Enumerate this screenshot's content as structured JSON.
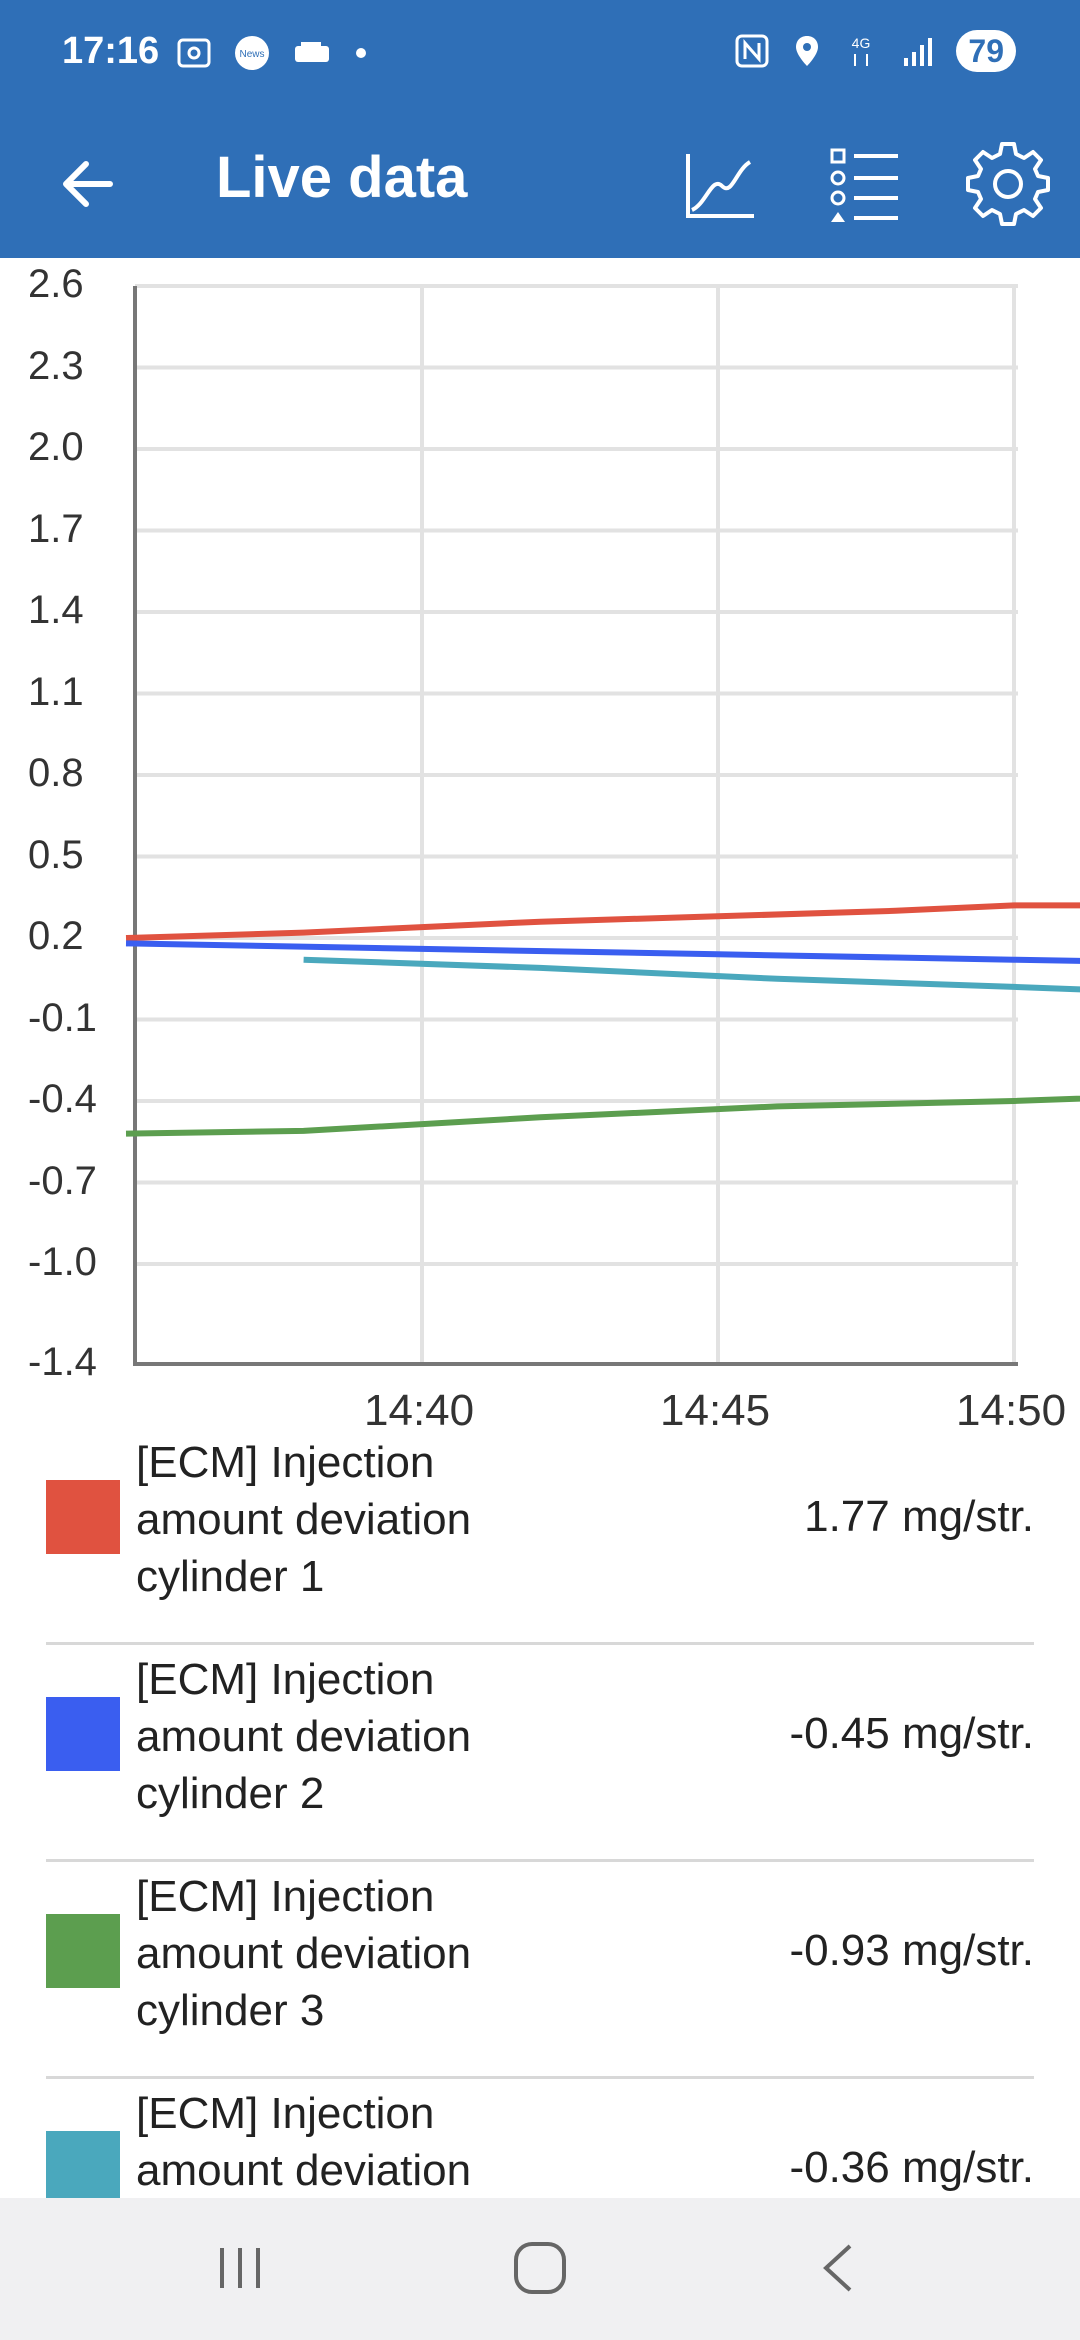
{
  "status_bar": {
    "time": "17:16",
    "left_icons": [
      "screenshot-icon",
      "news-icon",
      "car-icon",
      "dot-icon"
    ],
    "news_label": "News",
    "right_icons": [
      "nfc-icon",
      "location-icon",
      "4g-icon",
      "signal-icon"
    ],
    "network": "4G",
    "battery": "79"
  },
  "app_bar": {
    "title": "Live data",
    "icons": [
      "back-arrow-icon",
      "chart-icon",
      "list-icon",
      "gear-icon"
    ]
  },
  "chart_data": {
    "type": "line",
    "y_ticks": [
      "2.6",
      "2.3",
      "2.0",
      "1.7",
      "1.4",
      "1.1",
      "0.8",
      "0.5",
      "0.2",
      "-0.1",
      "-0.4",
      "-0.7",
      "-1.0",
      "-1.4"
    ],
    "x_ticks": [
      "14:40",
      "14:45",
      "14:50"
    ],
    "ylim": [
      -1.4,
      2.6
    ],
    "grid": true,
    "series": [
      {
        "name": "[ECM] Injection amount deviation cylinder 1",
        "color": "#e05240",
        "points": [
          [
            14.35,
            0.2
          ],
          [
            14.38,
            0.22
          ],
          [
            14.4,
            0.24
          ],
          [
            14.42,
            0.26
          ],
          [
            14.45,
            0.28
          ],
          [
            14.48,
            0.3
          ],
          [
            14.5,
            0.32
          ],
          [
            14.55,
            0.32
          ],
          [
            14.6,
            0.32
          ],
          [
            14.65,
            0.32
          ],
          [
            14.7,
            0.32
          ],
          [
            14.75,
            0.32
          ],
          [
            14.8,
            0.32
          ],
          [
            14.85,
            0.32
          ],
          [
            14.9,
            0.32
          ],
          [
            14.93,
            0.32
          ],
          [
            14.96,
            0.32
          ],
          [
            14.99,
            0.34
          ],
          [
            15.02,
            0.4
          ],
          [
            15.06,
            0.55
          ],
          [
            15.1,
            0.8
          ],
          [
            15.15,
            1.1
          ],
          [
            15.2,
            1.4
          ],
          [
            15.25,
            1.7
          ],
          [
            15.3,
            2.0
          ],
          [
            15.35,
            2.3
          ],
          [
            15.4,
            2.5
          ],
          [
            15.44,
            2.6
          ],
          [
            15.47,
            1.92
          ],
          [
            15.5,
            1.92
          ],
          [
            15.55,
            1.92
          ],
          [
            15.6,
            1.88
          ],
          [
            15.65,
            1.85
          ],
          [
            15.7,
            1.81
          ],
          [
            15.75,
            1.77
          ]
        ]
      },
      {
        "name": "[ECM] Injection amount deviation cylinder 2",
        "color": "#3a5ef0",
        "points": [
          [
            14.35,
            0.18
          ],
          [
            14.4,
            0.16
          ],
          [
            14.45,
            0.14
          ],
          [
            14.5,
            0.12
          ],
          [
            14.55,
            0.1
          ],
          [
            14.6,
            0.1
          ],
          [
            14.65,
            0.1
          ],
          [
            14.7,
            0.1
          ],
          [
            14.75,
            0.1
          ],
          [
            14.8,
            0.1
          ],
          [
            14.85,
            0.1
          ],
          [
            14.9,
            0.1
          ],
          [
            14.95,
            0.1
          ],
          [
            15.0,
            0.09
          ],
          [
            15.03,
            0.06
          ],
          [
            15.07,
            0.0
          ],
          [
            15.12,
            -0.08
          ],
          [
            15.18,
            -0.18
          ],
          [
            15.25,
            -0.3
          ],
          [
            15.32,
            -0.42
          ],
          [
            15.38,
            -0.52
          ],
          [
            15.42,
            -0.58
          ],
          [
            15.46,
            -0.6
          ],
          [
            15.49,
            -0.6
          ],
          [
            15.52,
            -0.5
          ],
          [
            15.55,
            -0.34
          ],
          [
            15.58,
            -0.33
          ],
          [
            15.62,
            -0.33
          ],
          [
            15.66,
            -0.35
          ],
          [
            15.7,
            -0.38
          ],
          [
            15.75,
            -0.41
          ],
          [
            15.8,
            -0.43
          ],
          [
            15.82,
            -0.45
          ]
        ]
      },
      {
        "name": "[ECM] Injection amount deviation cylinder 3",
        "color": "#5c9e4f",
        "points": [
          [
            14.35,
            -0.52
          ],
          [
            14.38,
            -0.51
          ],
          [
            14.42,
            -0.46
          ],
          [
            14.46,
            -0.42
          ],
          [
            14.5,
            -0.4
          ],
          [
            14.55,
            -0.36
          ],
          [
            14.6,
            -0.33
          ],
          [
            14.65,
            -0.33
          ],
          [
            14.7,
            -0.33
          ],
          [
            14.75,
            -0.33
          ],
          [
            14.8,
            -0.33
          ],
          [
            14.85,
            -0.33
          ],
          [
            14.9,
            -0.33
          ],
          [
            14.95,
            -0.33
          ],
          [
            15.0,
            -0.33
          ],
          [
            15.04,
            -0.36
          ],
          [
            15.08,
            -0.42
          ],
          [
            15.13,
            -0.5
          ],
          [
            15.18,
            -0.6
          ],
          [
            15.23,
            -0.72
          ],
          [
            15.28,
            -0.88
          ],
          [
            15.33,
            -1.02
          ],
          [
            15.38,
            -1.1
          ],
          [
            15.42,
            -1.22
          ],
          [
            15.46,
            -1.32
          ],
          [
            15.5,
            -1.38
          ],
          [
            15.53,
            -1.39
          ],
          [
            15.56,
            -1.3
          ],
          [
            15.6,
            -1.29
          ],
          [
            15.65,
            -1.26
          ],
          [
            15.7,
            -1.2
          ],
          [
            15.75,
            -1.14
          ],
          [
            15.8,
            -1.06
          ],
          [
            15.85,
            -0.98
          ],
          [
            15.88,
            -0.93
          ]
        ]
      },
      {
        "name": "[ECM] Injection amount deviation",
        "color": "#4aa8bd",
        "points": [
          [
            14.38,
            0.12
          ],
          [
            14.42,
            0.09
          ],
          [
            14.46,
            0.05
          ],
          [
            14.5,
            0.02
          ],
          [
            14.55,
            -0.02
          ],
          [
            14.6,
            -0.05
          ],
          [
            14.65,
            -0.05
          ],
          [
            14.7,
            -0.05
          ],
          [
            14.75,
            -0.05
          ],
          [
            14.8,
            -0.05
          ],
          [
            14.85,
            -0.05
          ],
          [
            14.9,
            -0.05
          ],
          [
            14.95,
            -0.05
          ],
          [
            15.0,
            -0.05
          ],
          [
            15.04,
            -0.08
          ],
          [
            15.08,
            -0.15
          ],
          [
            15.13,
            -0.25
          ],
          [
            15.18,
            -0.32
          ],
          [
            15.23,
            -0.36
          ],
          [
            15.28,
            -0.42
          ],
          [
            15.33,
            -0.48
          ],
          [
            15.38,
            -0.52
          ],
          [
            15.42,
            -0.56
          ],
          [
            15.46,
            -0.58
          ],
          [
            15.5,
            -0.57
          ],
          [
            15.53,
            -0.5
          ],
          [
            15.56,
            -0.34
          ],
          [
            15.6,
            -0.33
          ],
          [
            15.65,
            -0.33
          ],
          [
            15.7,
            -0.34
          ],
          [
            15.75,
            -0.34
          ],
          [
            15.8,
            -0.35
          ],
          [
            15.85,
            -0.35
          ],
          [
            15.88,
            -0.36
          ]
        ]
      }
    ]
  },
  "legend": [
    {
      "label": "[ECM] Injection amount deviation cylinder 1",
      "value": "1.77 mg/str.",
      "color": "#e05240"
    },
    {
      "label": "[ECM] Injection amount deviation cylinder 2",
      "value": "-0.45 mg/str.",
      "color": "#3a5ef0"
    },
    {
      "label": "[ECM] Injection amount deviation cylinder 3",
      "value": "-0.93 mg/str.",
      "color": "#5c9e4f"
    },
    {
      "label": "[ECM] Injection amount deviation",
      "value": "-0.36 mg/str.",
      "color": "#4aa8bd"
    }
  ],
  "nav_bar": {
    "icons": [
      "recent-apps-icon",
      "home-icon",
      "back-icon"
    ]
  }
}
